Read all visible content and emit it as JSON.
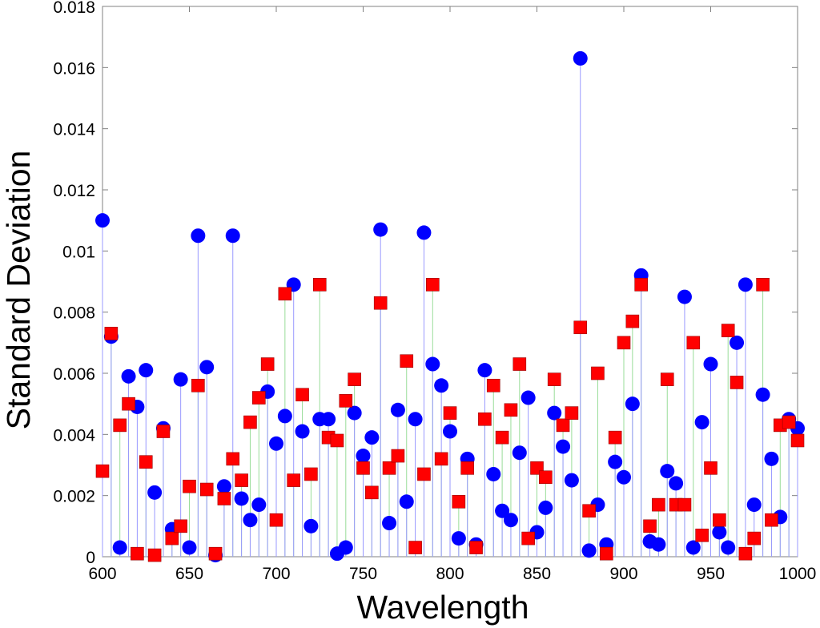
{
  "chart_data": {
    "type": "scatter",
    "title": "",
    "xlabel": "Wavelength",
    "ylabel": "Standard Deviation",
    "xlim": [
      600,
      1000
    ],
    "ylim": [
      0,
      0.018
    ],
    "x_ticks": [
      600,
      650,
      700,
      750,
      800,
      850,
      900,
      950,
      1000
    ],
    "y_ticks": [
      0,
      0.002,
      0.004,
      0.006,
      0.008,
      0.01,
      0.012,
      0.014,
      0.016,
      0.018
    ],
    "x_tick_labels": [
      "600",
      "650",
      "700",
      "750",
      "800",
      "850",
      "900",
      "950",
      "1000"
    ],
    "y_tick_labels": [
      "0",
      "0.002",
      "0.004",
      "0.006",
      "0.008",
      "0.01",
      "0.012",
      "0.014",
      "0.016",
      "0.018"
    ],
    "grid": false,
    "x": [
      600,
      605,
      610,
      615,
      620,
      625,
      630,
      635,
      640,
      645,
      650,
      655,
      660,
      665,
      670,
      675,
      680,
      685,
      690,
      695,
      700,
      705,
      710,
      715,
      720,
      725,
      730,
      735,
      740,
      745,
      750,
      755,
      760,
      765,
      770,
      775,
      780,
      785,
      790,
      795,
      800,
      805,
      810,
      815,
      820,
      825,
      830,
      835,
      840,
      845,
      850,
      855,
      860,
      865,
      870,
      875,
      880,
      885,
      890,
      895,
      900,
      905,
      910,
      915,
      920,
      925,
      930,
      935,
      940,
      945,
      950,
      955,
      960,
      965,
      970,
      975,
      980,
      985,
      990,
      995,
      1000
    ],
    "series": [
      {
        "name": "blue circles",
        "marker": "circle",
        "color": "#0000ff",
        "stem_color": "#9999ff",
        "values": [
          0.011,
          0.0072,
          0.0003,
          0.0059,
          0.0049,
          0.0061,
          0.0021,
          0.0042,
          0.0009,
          0.0058,
          0.0003,
          0.0105,
          0.0062,
          5e-05,
          0.0023,
          0.0105,
          0.0019,
          0.0012,
          0.0017,
          0.0054,
          0.0037,
          0.0046,
          0.0089,
          0.0041,
          0.001,
          0.0045,
          0.0045,
          0.0001,
          0.0003,
          0.0047,
          0.0033,
          0.0039,
          0.0107,
          0.0011,
          0.0048,
          0.0018,
          0.0045,
          0.0106,
          0.0063,
          0.0056,
          0.0041,
          0.0006,
          0.0032,
          0.0004,
          0.0061,
          0.0027,
          0.0015,
          0.0012,
          0.0034,
          0.0052,
          0.0008,
          0.0016,
          0.0047,
          0.0036,
          0.0025,
          0.0163,
          0.0002,
          0.0017,
          0.0004,
          0.0031,
          0.0026,
          0.005,
          0.0092,
          0.0005,
          0.0004,
          0.0028,
          0.0024,
          0.0085,
          0.0003,
          0.0044,
          0.0063,
          0.0008,
          0.0003,
          0.007,
          0.0089,
          0.0017,
          0.0053,
          0.0032,
          0.0013,
          0.0045,
          0.0042
        ]
      },
      {
        "name": "red squares",
        "marker": "square",
        "color": "#ff0000",
        "stem_color": "#99dd99",
        "values": [
          0.0028,
          0.0073,
          0.0043,
          0.005,
          0.0001,
          0.0031,
          5e-05,
          0.0041,
          0.0006,
          0.001,
          0.0023,
          0.0056,
          0.0022,
          0.0001,
          0.0019,
          0.0032,
          0.0025,
          0.0044,
          0.0052,
          0.0063,
          0.0012,
          0.0086,
          0.0025,
          0.0053,
          0.0027,
          0.0089,
          0.0039,
          0.0038,
          0.0051,
          0.0058,
          0.0029,
          0.0021,
          0.0083,
          0.0029,
          0.0033,
          0.0064,
          0.0003,
          0.0027,
          0.0089,
          0.0032,
          0.0047,
          0.0018,
          0.0029,
          0.0003,
          0.0045,
          0.0056,
          0.0039,
          0.0048,
          0.0063,
          0.0006,
          0.0029,
          0.0026,
          0.0058,
          0.0043,
          0.0047,
          0.0075,
          0.0015,
          0.006,
          0.0001,
          0.0039,
          0.007,
          0.0077,
          0.0089,
          0.001,
          0.0017,
          0.0058,
          0.0017,
          0.0017,
          0.007,
          0.0007,
          0.0029,
          0.0012,
          0.0074,
          0.0057,
          0.0001,
          0.0006,
          0.0089,
          0.0012,
          0.0043,
          0.0044,
          0.0038
        ]
      }
    ]
  }
}
